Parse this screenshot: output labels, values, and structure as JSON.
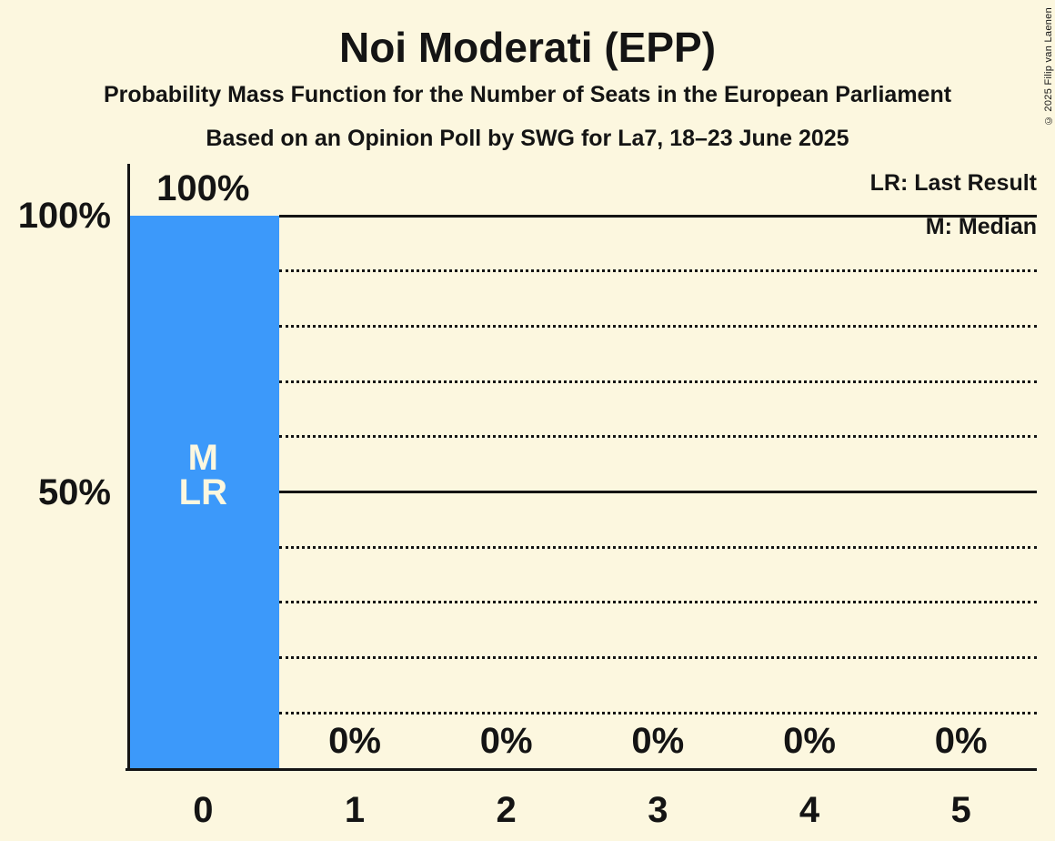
{
  "title": "Noi Moderati (EPP)",
  "subtitle": "Probability Mass Function for the Number of Seats in the European Parliament",
  "source_line": "Based on an Opinion Poll by SWG for La7, 18–23 June 2025",
  "copyright": "© 2025 Filip van Laenen",
  "legend": {
    "lr": "LR: Last Result",
    "m": "M: Median"
  },
  "colors": {
    "background": "#FCF7DF",
    "bar": "#3C99FA",
    "text": "#141414",
    "bar_annotation_text": "#FCF7DF"
  },
  "chart_data": {
    "type": "bar",
    "title": "Noi Moderati (EPP)",
    "categories": [
      "0",
      "1",
      "2",
      "3",
      "4",
      "5"
    ],
    "values": [
      100,
      0,
      0,
      0,
      0,
      0
    ],
    "value_labels": [
      "100%",
      "0%",
      "0%",
      "0%",
      "0%",
      "0%"
    ],
    "xlabel": "",
    "ylabel": "",
    "ylim": [
      0,
      100
    ],
    "yticks": [
      50,
      100
    ],
    "ytick_labels": [
      "50%",
      "100%"
    ],
    "gridlines_dotted": [
      10,
      20,
      30,
      40,
      60,
      70,
      80,
      90
    ],
    "gridlines_solid": [
      50,
      100
    ],
    "annotations": [
      {
        "bar_index": 0,
        "lines": [
          "M",
          "LR"
        ]
      }
    ],
    "median_seats": 0,
    "last_result_seats": 0
  }
}
